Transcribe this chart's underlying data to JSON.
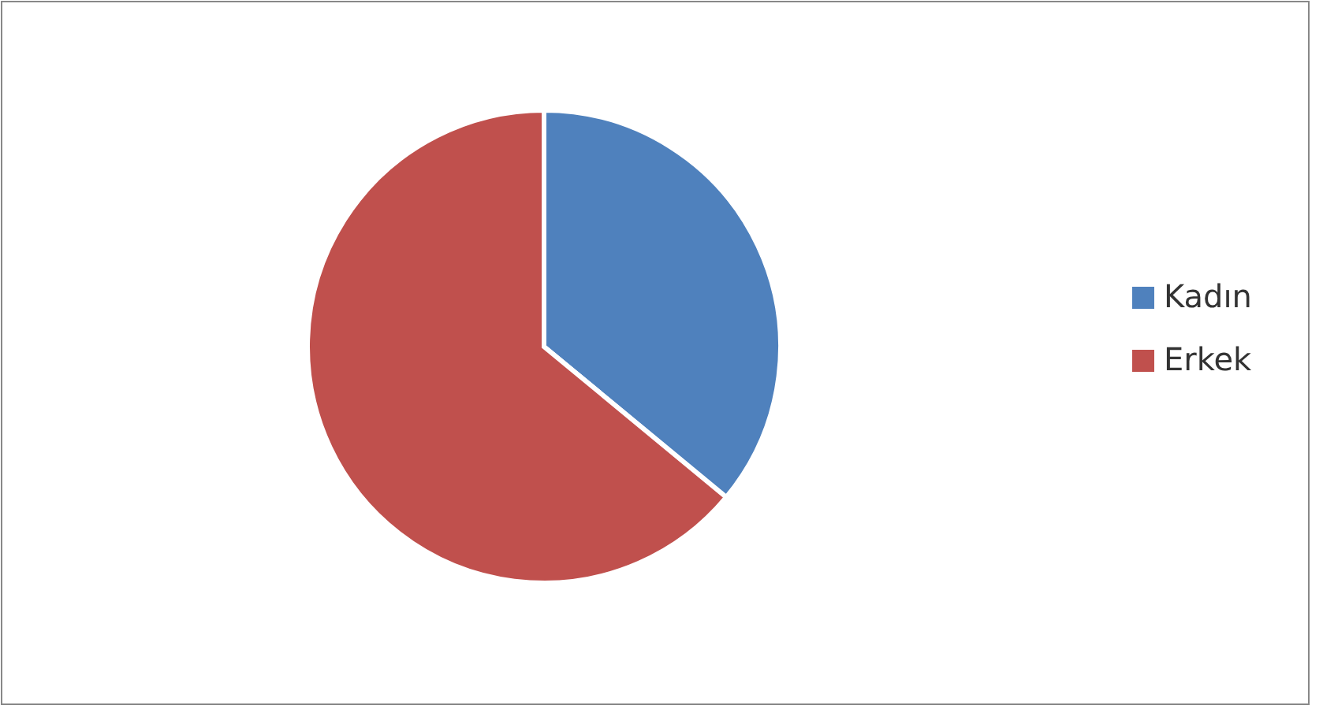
{
  "chart_data": {
    "type": "pie",
    "categories": [
      "Kadın",
      "Erkek"
    ],
    "values": [
      36,
      64
    ],
    "colors": [
      "#4f81bd",
      "#c0504d"
    ],
    "legend": "right"
  }
}
